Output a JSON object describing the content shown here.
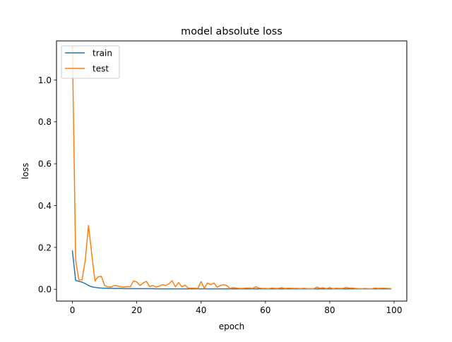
{
  "chart_data": {
    "type": "line",
    "title": "model absolute loss",
    "xlabel": "epoch",
    "ylabel": "loss",
    "xlim": [
      -4.95,
      103.95
    ],
    "ylim": [
      -0.0565,
      1.1865
    ],
    "x_ticks": [
      0,
      20,
      40,
      60,
      80,
      100
    ],
    "y_ticks": [
      0.0,
      0.2,
      0.4,
      0.6,
      0.8,
      1.0
    ],
    "x_tick_labels": [
      "0",
      "20",
      "40",
      "60",
      "80",
      "100"
    ],
    "y_tick_labels": [
      "0.0",
      "0.2",
      "0.4",
      "0.6",
      "0.8",
      "1.0"
    ],
    "legend_position": "top-left",
    "grid": false,
    "series": [
      {
        "name": "train",
        "color": "#1f77b4",
        "x": [
          0,
          1,
          2,
          3,
          4,
          5,
          6,
          7,
          8,
          9,
          10,
          11,
          12,
          13,
          14,
          15,
          16,
          17,
          18,
          19,
          20,
          21,
          22,
          23,
          24,
          25,
          26,
          27,
          28,
          29,
          30,
          31,
          32,
          33,
          34,
          35,
          36,
          37,
          38,
          39,
          40,
          41,
          42,
          43,
          44,
          45,
          46,
          47,
          48,
          49,
          50,
          51,
          52,
          53,
          54,
          55,
          56,
          57,
          58,
          59,
          60,
          61,
          62,
          63,
          64,
          65,
          66,
          67,
          68,
          69,
          70,
          71,
          72,
          73,
          74,
          75,
          76,
          77,
          78,
          79,
          80,
          81,
          82,
          83,
          84,
          85,
          86,
          87,
          88,
          89,
          90,
          91,
          92,
          93,
          94,
          95,
          96,
          97,
          98,
          99
        ],
        "values": [
          0.183,
          0.042,
          0.038,
          0.034,
          0.027,
          0.018,
          0.012,
          0.009,
          0.007,
          0.006,
          0.005,
          0.005,
          0.004,
          0.004,
          0.004,
          0.004,
          0.003,
          0.003,
          0.003,
          0.003,
          0.003,
          0.003,
          0.003,
          0.003,
          0.003,
          0.003,
          0.002,
          0.002,
          0.002,
          0.002,
          0.002,
          0.002,
          0.002,
          0.002,
          0.002,
          0.002,
          0.002,
          0.002,
          0.002,
          0.002,
          0.002,
          0.002,
          0.002,
          0.002,
          0.002,
          0.002,
          0.002,
          0.002,
          0.002,
          0.002,
          0.002,
          0.002,
          0.002,
          0.002,
          0.002,
          0.002,
          0.002,
          0.002,
          0.002,
          0.002,
          0.002,
          0.002,
          0.002,
          0.002,
          0.002,
          0.002,
          0.002,
          0.002,
          0.002,
          0.002,
          0.002,
          0.002,
          0.002,
          0.002,
          0.002,
          0.002,
          0.002,
          0.002,
          0.002,
          0.002,
          0.002,
          0.002,
          0.002,
          0.002,
          0.002,
          0.002,
          0.002,
          0.002,
          0.002,
          0.002,
          0.002,
          0.002,
          0.002,
          0.002,
          0.002,
          0.002,
          0.002,
          0.002,
          0.002,
          0.002
        ]
      },
      {
        "name": "test",
        "color": "#ff7f0e",
        "x": [
          0,
          1,
          2,
          3,
          4,
          5,
          6,
          7,
          8,
          9,
          10,
          11,
          12,
          13,
          14,
          15,
          16,
          17,
          18,
          19,
          20,
          21,
          22,
          23,
          24,
          25,
          26,
          27,
          28,
          29,
          30,
          31,
          32,
          33,
          34,
          35,
          36,
          37,
          38,
          39,
          40,
          41,
          42,
          43,
          44,
          45,
          46,
          47,
          48,
          49,
          50,
          51,
          52,
          53,
          54,
          55,
          56,
          57,
          58,
          59,
          60,
          61,
          62,
          63,
          64,
          65,
          66,
          67,
          68,
          69,
          70,
          71,
          72,
          73,
          74,
          75,
          76,
          77,
          78,
          79,
          80,
          81,
          82,
          83,
          84,
          85,
          86,
          87,
          88,
          89,
          90,
          91,
          92,
          93,
          94,
          95,
          96,
          97,
          98,
          99
        ],
        "values": [
          1.16,
          0.14,
          0.045,
          0.045,
          0.14,
          0.305,
          0.17,
          0.04,
          0.06,
          0.062,
          0.018,
          0.012,
          0.011,
          0.018,
          0.016,
          0.013,
          0.01,
          0.013,
          0.012,
          0.04,
          0.035,
          0.018,
          0.03,
          0.038,
          0.013,
          0.018,
          0.01,
          0.015,
          0.022,
          0.018,
          0.026,
          0.041,
          0.012,
          0.032,
          0.012,
          0.02,
          0.006,
          0.006,
          0.005,
          0.004,
          0.037,
          0.005,
          0.03,
          0.022,
          0.03,
          0.01,
          0.018,
          0.022,
          0.018,
          0.004,
          0.008,
          0.006,
          0.004,
          0.004,
          0.006,
          0.006,
          0.004,
          0.012,
          0.006,
          0.004,
          0.004,
          0.003,
          0.006,
          0.004,
          0.004,
          0.008,
          0.004,
          0.005,
          0.005,
          0.004,
          0.004,
          0.003,
          0.005,
          0.003,
          0.003,
          0.003,
          0.01,
          0.005,
          0.007,
          0.003,
          0.008,
          0.003,
          0.005,
          0.004,
          0.004,
          0.009,
          0.006,
          0.006,
          0.004,
          0.003,
          0.003,
          0.004,
          0.003,
          0.002,
          0.006,
          0.004,
          0.005,
          0.005,
          0.004,
          0.003
        ]
      }
    ]
  }
}
